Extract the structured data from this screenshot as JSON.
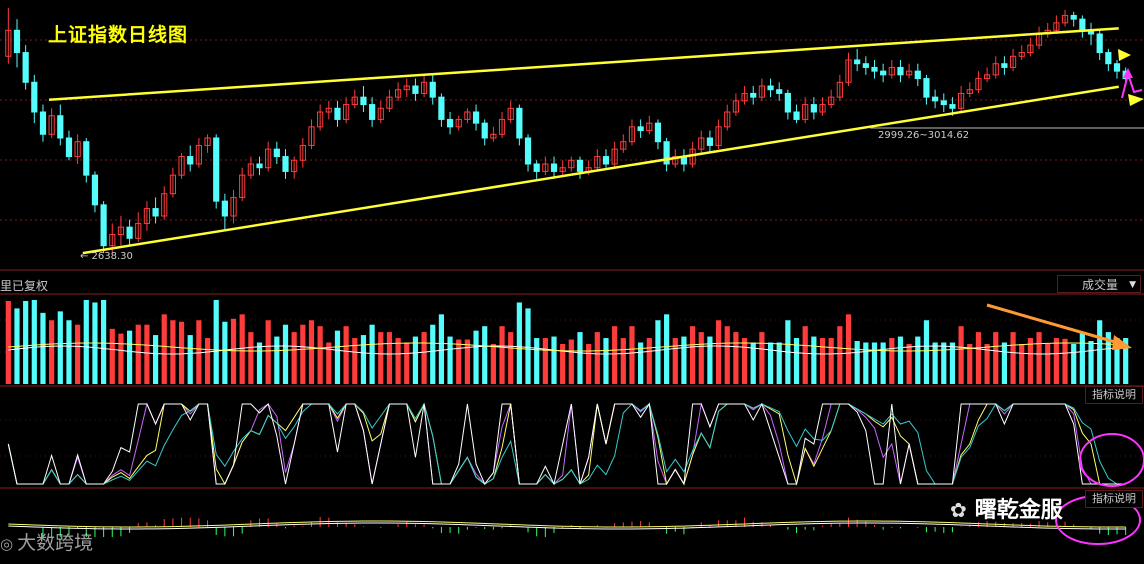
{
  "chart_title": "上证指数日线图",
  "main_panel": {
    "low_label": "2638.30",
    "support_label": "2999.26~3014.62"
  },
  "separator_label": "里已复权",
  "volume_selector": {
    "label": "成交量",
    "caret": "▼"
  },
  "indicator_buttons": [
    "指标说明",
    "指标说明"
  ],
  "watermarks": {
    "brand": "曙乾金服",
    "brand_icon": "wechat-icon",
    "secondary": "大数跨境",
    "secondary_icon": "circle-logo-icon"
  },
  "colors": {
    "up": "#ff3c3c",
    "down": "#54fcfc",
    "trendline": "#ffff33",
    "arrow_orange": "#ff9933",
    "arrow_magenta": "#ff33ff",
    "ma_yellow": "#e8e8a0",
    "grid_red": "#7a1b1b"
  },
  "chart_data": {
    "type": "candlestick",
    "title": "上证指数日线图",
    "ylim": [
      2600,
      3300
    ],
    "annotations": [
      {
        "text": "2638.30",
        "kind": "low"
      },
      {
        "text": "2999.26~3014.62",
        "kind": "horizontal-support"
      }
    ],
    "trendlines": [
      {
        "name": "upper",
        "from": [
          0.04,
          3053
        ],
        "to": [
          0.99,
          3245
        ]
      },
      {
        "name": "lower",
        "from": [
          0.07,
          2640
        ],
        "to": [
          0.99,
          3088
        ]
      }
    ],
    "candles_ohlc": [
      [
        3170,
        3240,
        3300,
        3150
      ],
      [
        3240,
        3180,
        3270,
        3140
      ],
      [
        3180,
        3100,
        3200,
        3080
      ],
      [
        3100,
        3020,
        3120,
        2990
      ],
      [
        3020,
        2960,
        3040,
        2940
      ],
      [
        2960,
        3010,
        3030,
        2950
      ],
      [
        3010,
        2950,
        3040,
        2930
      ],
      [
        2950,
        2900,
        2970,
        2890
      ],
      [
        2900,
        2940,
        2960,
        2880
      ],
      [
        2940,
        2850,
        2950,
        2830
      ],
      [
        2850,
        2770,
        2860,
        2750
      ],
      [
        2770,
        2660,
        2780,
        2640
      ],
      [
        2660,
        2690,
        2720,
        2638
      ],
      [
        2690,
        2710,
        2740,
        2660
      ],
      [
        2710,
        2680,
        2730,
        2660
      ],
      [
        2680,
        2720,
        2750,
        2670
      ],
      [
        2720,
        2760,
        2780,
        2700
      ],
      [
        2760,
        2740,
        2790,
        2720
      ],
      [
        2740,
        2800,
        2820,
        2730
      ],
      [
        2800,
        2850,
        2870,
        2790
      ],
      [
        2850,
        2900,
        2910,
        2840
      ],
      [
        2900,
        2880,
        2930,
        2860
      ],
      [
        2880,
        2930,
        2950,
        2870
      ],
      [
        2930,
        2950,
        2960,
        2910
      ],
      [
        2950,
        2780,
        2960,
        2760
      ],
      [
        2780,
        2740,
        2800,
        2700
      ],
      [
        2740,
        2790,
        2810,
        2720
      ],
      [
        2790,
        2850,
        2870,
        2780
      ],
      [
        2850,
        2880,
        2900,
        2840
      ],
      [
        2880,
        2870,
        2900,
        2850
      ],
      [
        2870,
        2920,
        2940,
        2860
      ],
      [
        2920,
        2900,
        2940,
        2880
      ],
      [
        2900,
        2860,
        2920,
        2840
      ],
      [
        2860,
        2890,
        2900,
        2840
      ],
      [
        2890,
        2930,
        2950,
        2870
      ],
      [
        2930,
        2980,
        3000,
        2920
      ],
      [
        2980,
        3020,
        3040,
        2970
      ],
      [
        3020,
        3030,
        3050,
        3000
      ],
      [
        3030,
        3000,
        3050,
        2980
      ],
      [
        3000,
        3040,
        3060,
        2990
      ],
      [
        3040,
        3060,
        3080,
        3030
      ],
      [
        3060,
        3040,
        3090,
        3020
      ],
      [
        3040,
        3000,
        3060,
        2980
      ],
      [
        3000,
        3030,
        3050,
        2990
      ],
      [
        3030,
        3060,
        3080,
        3020
      ],
      [
        3060,
        3080,
        3100,
        3050
      ],
      [
        3080,
        3090,
        3110,
        3060
      ],
      [
        3090,
        3070,
        3110,
        3050
      ],
      [
        3070,
        3100,
        3120,
        3060
      ],
      [
        3100,
        3060,
        3120,
        3040
      ],
      [
        3060,
        3000,
        3070,
        2980
      ],
      [
        3000,
        2980,
        3020,
        2960
      ],
      [
        2980,
        3000,
        3010,
        2970
      ],
      [
        3000,
        3020,
        3030,
        2990
      ],
      [
        3020,
        2990,
        3040,
        2970
      ],
      [
        2990,
        2950,
        3000,
        2930
      ],
      [
        2950,
        2960,
        2980,
        2940
      ],
      [
        2960,
        3000,
        3020,
        2950
      ],
      [
        3000,
        3030,
        3050,
        2990
      ],
      [
        3030,
        2950,
        3040,
        2930
      ],
      [
        2950,
        2880,
        2960,
        2860
      ],
      [
        2880,
        2860,
        2890,
        2840
      ],
      [
        2860,
        2880,
        2900,
        2850
      ],
      [
        2880,
        2860,
        2900,
        2840
      ],
      [
        2860,
        2870,
        2890,
        2850
      ],
      [
        2870,
        2890,
        2900,
        2860
      ],
      [
        2890,
        2860,
        2900,
        2840
      ],
      [
        2860,
        2870,
        2890,
        2850
      ],
      [
        2870,
        2900,
        2920,
        2860
      ],
      [
        2900,
        2880,
        2920,
        2870
      ],
      [
        2880,
        2920,
        2940,
        2870
      ],
      [
        2920,
        2940,
        2960,
        2910
      ],
      [
        2940,
        2980,
        3000,
        2930
      ],
      [
        2980,
        2970,
        3000,
        2950
      ],
      [
        2970,
        2990,
        3010,
        2960
      ],
      [
        2990,
        2940,
        3000,
        2920
      ],
      [
        2940,
        2880,
        2950,
        2860
      ],
      [
        2880,
        2900,
        2920,
        2870
      ],
      [
        2900,
        2880,
        2920,
        2860
      ],
      [
        2880,
        2920,
        2940,
        2870
      ],
      [
        2920,
        2950,
        2970,
        2910
      ],
      [
        2950,
        2930,
        2970,
        2910
      ],
      [
        2930,
        2980,
        3000,
        2920
      ],
      [
        2980,
        3020,
        3040,
        2970
      ],
      [
        3020,
        3050,
        3070,
        3010
      ],
      [
        3050,
        3070,
        3090,
        3040
      ],
      [
        3070,
        3060,
        3090,
        3040
      ],
      [
        3060,
        3090,
        3110,
        3050
      ],
      [
        3090,
        3080,
        3110,
        3060
      ],
      [
        3080,
        3070,
        3100,
        3050
      ],
      [
        3070,
        3020,
        3080,
        3000
      ],
      [
        3020,
        3000,
        3040,
        2990
      ],
      [
        3000,
        3040,
        3060,
        2990
      ],
      [
        3040,
        3020,
        3060,
        3000
      ],
      [
        3020,
        3040,
        3060,
        3010
      ],
      [
        3040,
        3060,
        3080,
        3030
      ],
      [
        3060,
        3100,
        3120,
        3050
      ],
      [
        3100,
        3160,
        3180,
        3090
      ],
      [
        3160,
        3150,
        3190,
        3130
      ],
      [
        3150,
        3140,
        3170,
        3120
      ],
      [
        3140,
        3130,
        3160,
        3110
      ],
      [
        3130,
        3120,
        3150,
        3100
      ],
      [
        3120,
        3140,
        3160,
        3110
      ],
      [
        3140,
        3120,
        3160,
        3100
      ],
      [
        3120,
        3130,
        3150,
        3110
      ],
      [
        3130,
        3110,
        3150,
        3090
      ],
      [
        3110,
        3060,
        3120,
        3040
      ],
      [
        3060,
        3050,
        3080,
        3030
      ],
      [
        3050,
        3040,
        3070,
        3020
      ],
      [
        3040,
        3030,
        3060,
        3010
      ],
      [
        3030,
        3070,
        3090,
        3020
      ],
      [
        3070,
        3080,
        3100,
        3060
      ],
      [
        3080,
        3110,
        3130,
        3070
      ],
      [
        3110,
        3120,
        3140,
        3100
      ],
      [
        3120,
        3150,
        3170,
        3110
      ],
      [
        3150,
        3140,
        3170,
        3120
      ],
      [
        3140,
        3170,
        3190,
        3130
      ],
      [
        3170,
        3180,
        3200,
        3160
      ],
      [
        3180,
        3200,
        3220,
        3170
      ],
      [
        3200,
        3230,
        3250,
        3190
      ],
      [
        3230,
        3240,
        3260,
        3220
      ],
      [
        3240,
        3260,
        3280,
        3230
      ],
      [
        3260,
        3280,
        3295,
        3250
      ],
      [
        3280,
        3270,
        3290,
        3250
      ],
      [
        3270,
        3240,
        3280,
        3220
      ],
      [
        3240,
        3230,
        3260,
        3200
      ],
      [
        3230,
        3180,
        3240,
        3160
      ],
      [
        3180,
        3150,
        3190,
        3130
      ],
      [
        3150,
        3130,
        3160,
        3110
      ],
      [
        3130,
        3110,
        3140,
        3090
      ]
    ]
  }
}
